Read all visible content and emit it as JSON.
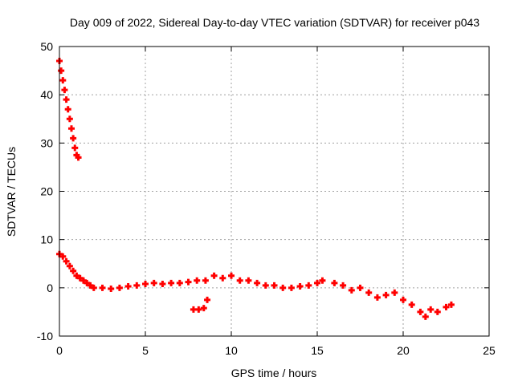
{
  "chart_data": {
    "type": "scatter",
    "title": "Day 009 of 2022, Sidereal Day-to-day VTEC variation (SDTVAR) for receiver p043",
    "xlabel": "GPS time / hours",
    "ylabel": "SDTVAR / TECUs",
    "xlim": [
      0,
      25
    ],
    "ylim": [
      -10,
      50
    ],
    "xticks": [
      0,
      5,
      10,
      15,
      20,
      25
    ],
    "yticks": [
      -10,
      0,
      10,
      20,
      30,
      40,
      50
    ],
    "xtick_labels": [
      "0",
      "5",
      "10",
      "15",
      "20",
      "25"
    ],
    "ytick_labels": [
      "-10",
      "0",
      "10",
      "20",
      "30",
      "40",
      "50"
    ],
    "grid": true,
    "marker": "plus",
    "series": [
      {
        "name": "SDTVAR",
        "color": "#ff0000",
        "x": [
          0.0,
          0.1,
          0.2,
          0.3,
          0.4,
          0.5,
          0.6,
          0.7,
          0.8,
          0.9,
          1.0,
          1.1,
          0.0,
          0.2,
          0.4,
          0.6,
          0.8,
          1.0,
          1.2,
          1.4,
          1.6,
          1.8,
          2.0,
          2.5,
          3.0,
          3.5,
          4.0,
          4.5,
          5.0,
          5.5,
          6.0,
          6.5,
          7.0,
          7.5,
          8.0,
          8.5,
          9.0,
          9.5,
          10.0,
          10.5,
          11.0,
          11.5,
          12.0,
          12.5,
          13.0,
          13.5,
          14.0,
          14.5,
          15.0,
          15.3,
          7.8,
          8.1,
          8.4,
          8.6,
          16.0,
          16.5,
          17.0,
          17.5,
          18.0,
          18.5,
          19.0,
          19.5,
          20.0,
          20.5,
          21.0,
          21.3,
          21.6,
          22.0,
          22.5,
          22.8
        ],
        "y": [
          47.0,
          45.0,
          43.0,
          41.0,
          39.0,
          37.0,
          35.0,
          33.0,
          31.0,
          29.0,
          27.5,
          27.0,
          7.0,
          6.5,
          5.5,
          4.5,
          3.5,
          2.5,
          2.0,
          1.5,
          1.0,
          0.5,
          0.0,
          0.0,
          -0.2,
          0.0,
          0.3,
          0.5,
          0.8,
          1.0,
          0.8,
          1.0,
          1.0,
          1.2,
          1.5,
          1.5,
          2.5,
          2.0,
          2.5,
          1.5,
          1.5,
          1.0,
          0.5,
          0.5,
          0.0,
          0.0,
          0.3,
          0.5,
          1.0,
          1.5,
          -4.5,
          -4.5,
          -4.2,
          -2.5,
          1.0,
          0.5,
          -0.5,
          0.0,
          -1.0,
          -2.0,
          -1.5,
          -1.0,
          -2.5,
          -3.5,
          -5.0,
          -6.0,
          -4.5,
          -5.0,
          -4.0,
          -3.5
        ]
      }
    ]
  }
}
